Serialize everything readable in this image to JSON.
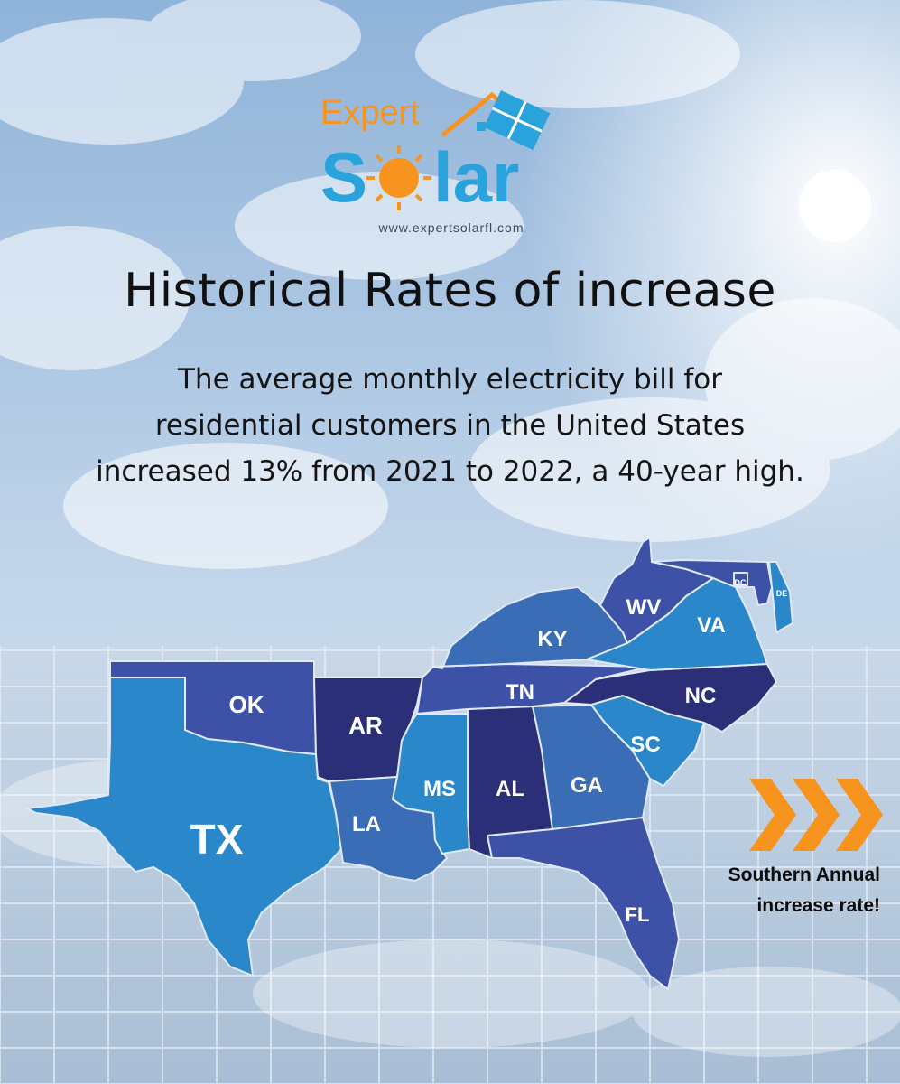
{
  "brand": {
    "word1": "Expert",
    "word2_a": "S",
    "word2_b": "lar",
    "url": "www.expertsolarfl.com",
    "colors": {
      "orange": "#f7941d",
      "blue": "#2aa3dc"
    }
  },
  "title": "Historical Rates of increase",
  "subtitle_lines": [
    "The average monthly electricity bill for",
    "residential customers in the United States",
    "increased 13% from 2021 to 2022, a 40-year high."
  ],
  "map": {
    "states": [
      {
        "code": "TX",
        "color": "#2a87c9"
      },
      {
        "code": "OK",
        "color": "#3d52a6"
      },
      {
        "code": "AR",
        "color": "#2a2f78"
      },
      {
        "code": "LA",
        "color": "#3a6db6"
      },
      {
        "code": "MS",
        "color": "#2a87c9"
      },
      {
        "code": "AL",
        "color": "#2a2f78"
      },
      {
        "code": "GA",
        "color": "#3a6db6"
      },
      {
        "code": "FL",
        "color": "#3d52a6"
      },
      {
        "code": "SC",
        "color": "#2a87c9"
      },
      {
        "code": "NC",
        "color": "#2a2f78"
      },
      {
        "code": "TN",
        "color": "#3d52a6"
      },
      {
        "code": "KY",
        "color": "#3a6db6"
      },
      {
        "code": "VA",
        "color": "#2a87c9"
      },
      {
        "code": "WV",
        "color": "#3d52a6"
      },
      {
        "code": "MD",
        "color": "#3d52a6"
      },
      {
        "code": "DC",
        "color": "#3d52a6"
      },
      {
        "code": "DE",
        "color": "#2a87c9"
      }
    ]
  },
  "callout": {
    "line1": "Southern Annual",
    "line2": "increase rate!",
    "arrow_color": "#f7941d"
  }
}
